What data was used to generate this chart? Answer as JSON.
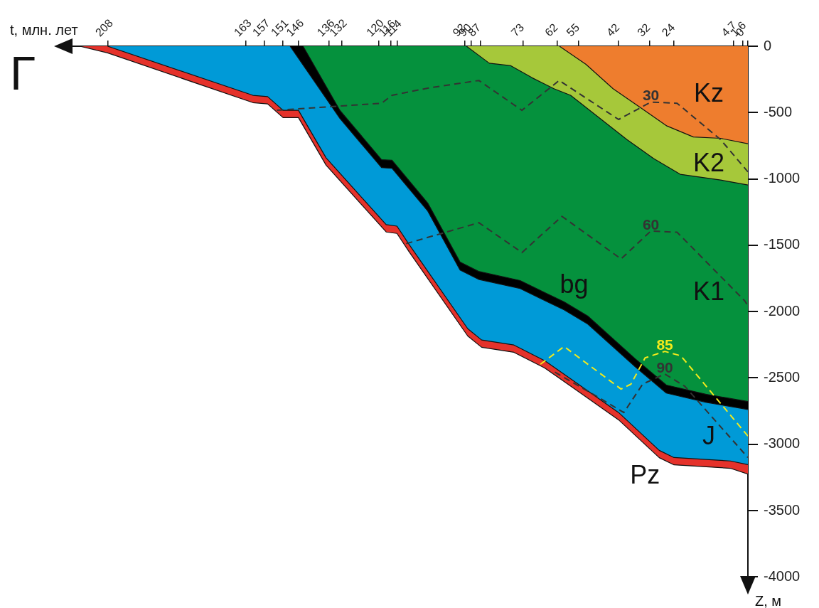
{
  "chart_data": {
    "type": "area",
    "xlabel": "t, млн. лет",
    "ylabel": "Z, м",
    "xlim": [
      224,
      0
    ],
    "ylim": [
      -4100,
      0
    ],
    "xticks": [
      208,
      163,
      157,
      151,
      146,
      136,
      132,
      120,
      116,
      114,
      92,
      90,
      87,
      73,
      62,
      55,
      42,
      32,
      24,
      4.7,
      1.6,
      0
    ],
    "yticks": [
      0,
      -500,
      -1000,
      -1500,
      -2000,
      -2500,
      -3000,
      -3500,
      -4000
    ],
    "marker": "none",
    "legend": false,
    "series": [
      {
        "name": "Pz",
        "color": "#e5322b",
        "x": [
          217,
          208,
          160.8,
          156,
          151,
          146,
          137,
          117.5,
          114,
          110,
          91,
          86.5,
          76,
          66,
          57.4,
          42,
          28.8,
          24,
          5.7,
          0
        ],
        "values": [
          0,
          -50,
          -425,
          -435,
          -538,
          -538,
          -897,
          -1400,
          -1411,
          -1551,
          -2184,
          -2269,
          -2307,
          -2425,
          -2565,
          -2816,
          -3101,
          -3155,
          -3181,
          -3225
        ]
      },
      {
        "name": "J",
        "color": "#009ad7",
        "x": [
          208,
          160.8,
          156,
          151,
          146,
          137,
          117.5,
          114,
          110,
          91,
          86.5,
          76,
          66,
          57.4,
          42,
          28.8,
          24,
          5.7,
          0
        ],
        "values": [
          0,
          -370,
          -380,
          -483,
          -483,
          -842,
          -1345,
          -1356,
          -1496,
          -2129,
          -2214,
          -2252,
          -2370,
          -2510,
          -2761,
          -3046,
          -3100,
          -3126,
          -3153
        ]
      },
      {
        "name": "bg",
        "color": "#000000",
        "x": [
          148.7,
          132.5,
          119,
          115.6,
          104,
          93.5,
          87.5,
          74,
          65,
          59.7,
          52,
          36.6,
          26.5,
          13.5,
          0
        ],
        "values": [
          0,
          -545,
          -915,
          -920,
          -1242,
          -1687,
          -1757,
          -1826,
          -1928,
          -1987,
          -2094,
          -2416,
          -2614,
          -2684,
          -2738
        ]
      },
      {
        "name": "K1",
        "color": "#05913d",
        "x": [
          144.5,
          132.5,
          119,
          115.6,
          104,
          93.5,
          87.5,
          74,
          65,
          59.7,
          52,
          36.6,
          26.5,
          13.5,
          0
        ],
        "values": [
          0,
          -485,
          -855,
          -860,
          -1182,
          -1627,
          -1697,
          -1766,
          -1868,
          -1927,
          -2034,
          -2356,
          -2554,
          -2624,
          -2678
        ]
      },
      {
        "name": "K2",
        "color": "#a6c83a",
        "x": [
          91.4,
          84,
          77,
          70,
          63,
          57.6,
          39.3,
          30.6,
          22,
          8.9,
          0
        ],
        "values": [
          0,
          -128,
          -147,
          -239,
          -320,
          -370,
          -703,
          -847,
          -965,
          -1008,
          -1046
        ]
      },
      {
        "name": "Kz",
        "color": "#ee7d2e",
        "x": [
          61.2,
          52.6,
          43.8,
          35,
          26.3,
          17.7,
          8.9,
          0
        ],
        "values": [
          0,
          -137,
          -320,
          -461,
          -601,
          -684,
          -694,
          -735
        ]
      },
      {
        "type": "line",
        "name": "30",
        "color": "#333333",
        "line_style": "dashed",
        "x": [
          153,
          119,
          115.6,
          104,
          87.4,
          73.4,
          61.3,
          42,
          31.5,
          23,
          8.9,
          0
        ],
        "values": [
          -483,
          -430,
          -370,
          -316,
          -258,
          -483,
          -258,
          -552,
          -421,
          -430,
          -703,
          -947
        ]
      },
      {
        "type": "line",
        "name": "60",
        "color": "#333333",
        "line_style": "dashed",
        "x": [
          111,
          87.4,
          73.4,
          60.4,
          41.2,
          31.5,
          23,
          1,
          0
        ],
        "values": [
          -1488,
          -1330,
          -1555,
          -1282,
          -1603,
          -1392,
          -1402,
          -1920,
          -1957
        ]
      },
      {
        "type": "line",
        "name": "85",
        "color": "#f2ea1c",
        "line_style": "dashed",
        "x": [
          67.4,
          59.7,
          41.2,
          38,
          33.4,
          27,
          21.8,
          0
        ],
        "values": [
          -2397,
          -2263,
          -2584,
          -2547,
          -2349,
          -2300,
          -2333,
          -2938
        ]
      },
      {
        "type": "line",
        "name": "90",
        "color": "#333333",
        "line_style": "dashed",
        "x": [
          62.7,
          48,
          40.3,
          34.2,
          27,
          20.5,
          0
        ],
        "values": [
          -2456,
          -2654,
          -2761,
          -2547,
          -2470,
          -2563,
          -3100
        ]
      }
    ],
    "annotations": [
      "Г"
    ]
  }
}
